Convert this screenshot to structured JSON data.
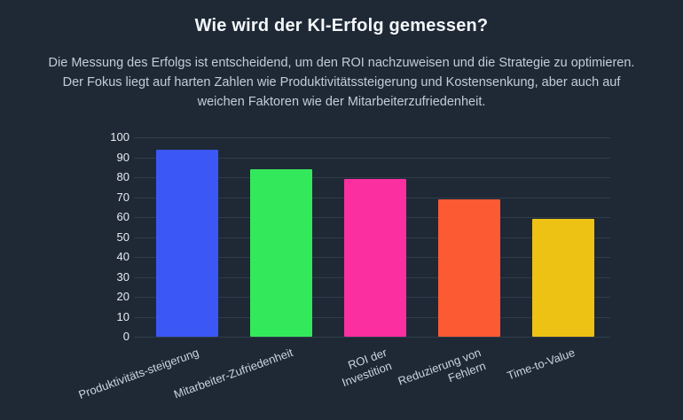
{
  "page": {
    "title": "Wie wird der KI-Erfolg gemessen?",
    "subtitle": "Die Messung des Erfolgs ist entscheidend, um den ROI nachzuweisen und die Strategie zu optimieren. Der Fokus liegt auf harten Zahlen wie Produktivitätssteigerung und Kostensenkung, aber auch auf weichen Faktoren wie der Mitarbeiterzufriedenheit."
  },
  "colors": {
    "background": "#1f2936",
    "grid": "#303c4b",
    "title_text": "#f4f7fa",
    "subtitle_text": "#c3cdd8",
    "y_tick_text": "#e6ebf1",
    "x_label_text": "#ccd5df"
  },
  "chart_data": {
    "type": "bar",
    "title": "Wie wird der KI-Erfolg gemessen?",
    "categories": [
      "Produktivitäts-steigerung",
      "Mitarbeiter-Zufriedenheit",
      "ROI der Investition",
      "Reduzierung von Fehlern",
      "Time-to-Value"
    ],
    "category_lines": [
      [
        "Produktivitäts-steigerung"
      ],
      [
        "Mitarbeiter-Zufriedenheit"
      ],
      [
        "ROI der",
        "Investition"
      ],
      [
        "Reduzierung von",
        "Fehlern"
      ],
      [
        "Time-to-Value"
      ]
    ],
    "values": [
      94,
      84,
      79,
      69,
      59
    ],
    "bar_colors": [
      "#3b57f6",
      "#34e85c",
      "#fb2fa0",
      "#fc5a33",
      "#eec215"
    ],
    "xlabel": "",
    "ylabel": "",
    "ylim": [
      0,
      100
    ],
    "y_ticks": [
      0,
      10,
      20,
      30,
      40,
      50,
      60,
      70,
      80,
      90,
      100
    ],
    "grid": true,
    "legend": "none",
    "x_label_rotation_deg": -20
  }
}
